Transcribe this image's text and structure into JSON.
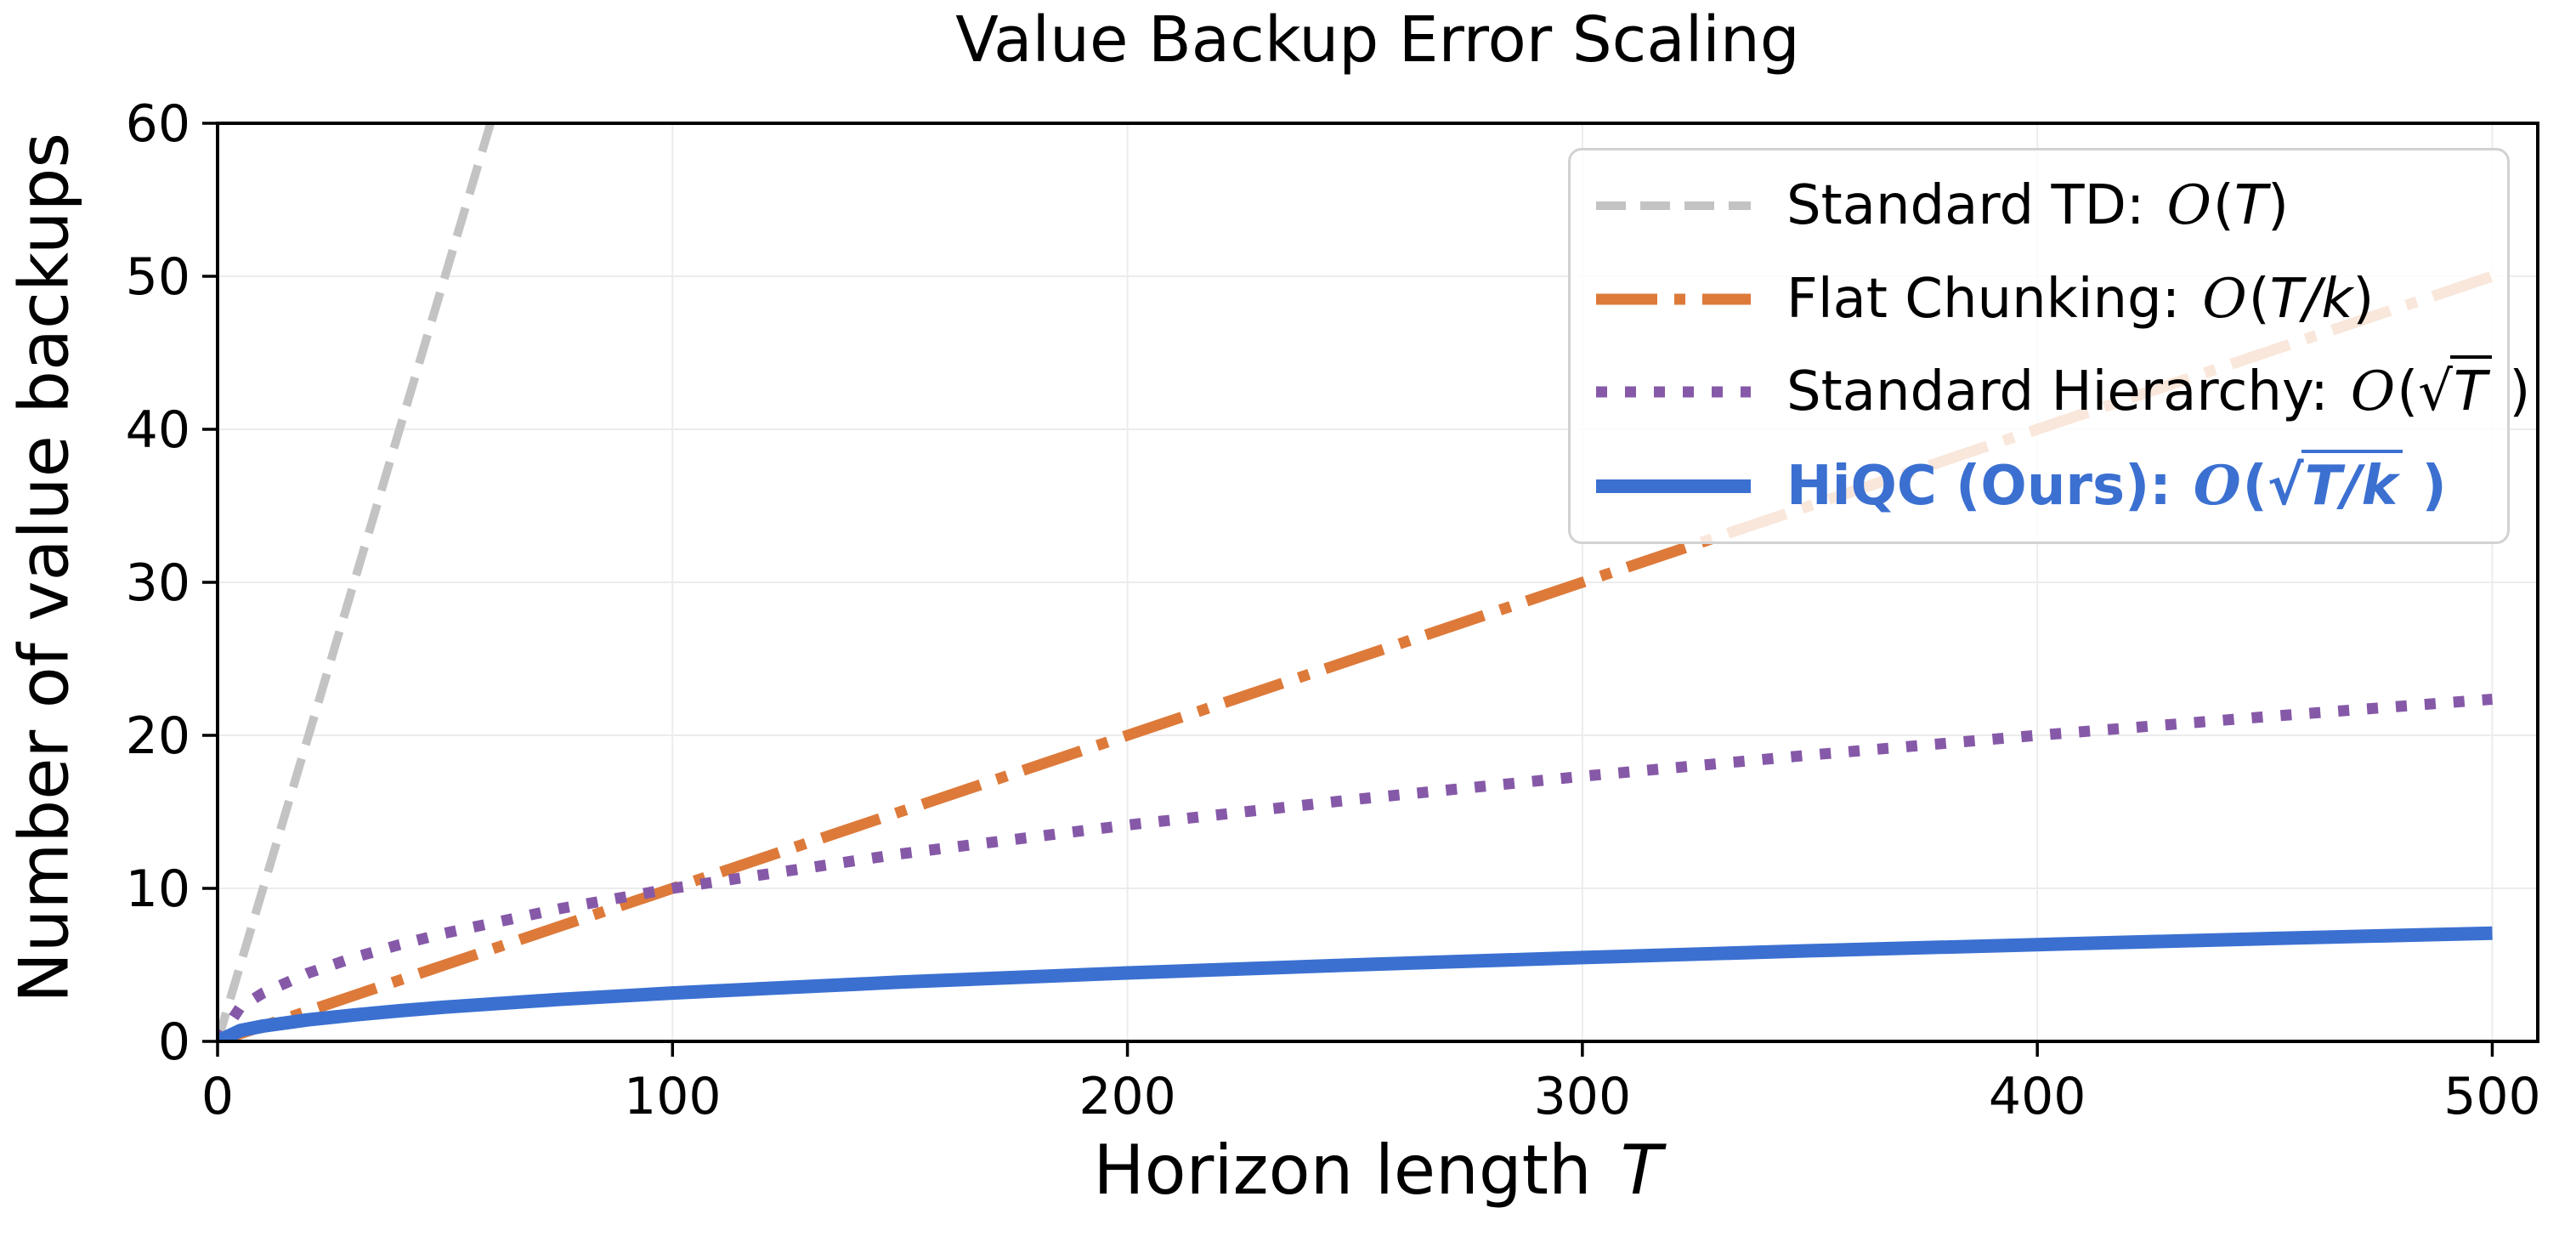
{
  "title": "Value Backup Error Scaling",
  "axes": {
    "xlabel": "Horizon length",
    "xlabel_var": "T",
    "ylabel": "Number of value backups",
    "x_tick_labels": [
      "0",
      "100",
      "200",
      "300",
      "400",
      "500"
    ],
    "y_tick_labels": [
      "0",
      "10",
      "20",
      "30",
      "40",
      "50",
      "60"
    ]
  },
  "legend": {
    "items": [
      {
        "label": "Standard TD:",
        "formula": "𝒪(T)",
        "math": {
          "o": "O",
          "open": "(",
          "inner": "T",
          "close": ")"
        }
      },
      {
        "label": "Flat Chunking:",
        "formula": "𝒪(T/k)",
        "math": {
          "o": "O",
          "open": "(",
          "inner": "T/k",
          "close": ")"
        }
      },
      {
        "label": "Standard Hierarchy:",
        "formula": "𝒪(√T)",
        "math": {
          "o": "O",
          "open": "(",
          "radical": "√",
          "inner": "T",
          "close": " )"
        }
      },
      {
        "label": "HiQC (Ours):",
        "formula": "𝒪(√T/k)",
        "bold": true,
        "color": "#3b70d1",
        "math": {
          "o": "O",
          "open": "(",
          "radical": "√",
          "inner": "T/k",
          "close": " )"
        }
      }
    ]
  },
  "chart_data": {
    "type": "line",
    "title": "Value Backup Error Scaling",
    "xlabel": "Horizon length T",
    "ylabel": "Number of value backups",
    "xlim": [
      0,
      510
    ],
    "ylim": [
      0,
      60
    ],
    "grid": true,
    "grid_color": "#ececec",
    "legend_position": "upper right",
    "chunk_size_k": 10,
    "x_ticks": [
      0,
      100,
      200,
      300,
      400,
      500
    ],
    "y_ticks": [
      0,
      10,
      20,
      30,
      40,
      50,
      60
    ],
    "x": [
      0,
      5,
      10,
      20,
      30,
      40,
      50,
      75,
      100,
      150,
      200,
      250,
      300,
      350,
      400,
      450,
      500
    ],
    "series": [
      {
        "name": "Standard TD",
        "formula": "O(T)",
        "style": "dashed",
        "color": "#c3c3c3",
        "linewidth": 10,
        "values": [
          0,
          5,
          10,
          20,
          30,
          40,
          50,
          75,
          100,
          150,
          200,
          250,
          300,
          350,
          400,
          450,
          500
        ]
      },
      {
        "name": "Flat Chunking",
        "formula": "O(T/k)",
        "style": "dashdot",
        "color": "#dd7a3a",
        "linewidth": 13,
        "values": [
          0,
          0.5,
          1,
          2,
          3,
          4,
          5,
          7.5,
          10,
          15,
          20,
          25,
          30,
          35,
          40,
          45,
          50
        ]
      },
      {
        "name": "Standard Hierarchy",
        "formula": "O(√T)",
        "style": "dotted",
        "color": "#8659a8",
        "linewidth": 13,
        "values": [
          0,
          2.24,
          3.16,
          4.47,
          5.48,
          6.32,
          7.07,
          8.66,
          10,
          12.25,
          14.14,
          15.81,
          17.32,
          18.71,
          20,
          21.21,
          22.36
        ]
      },
      {
        "name": "HiQC (Ours)",
        "formula": "O(√T/k)",
        "style": "solid",
        "color": "#3b70d1",
        "linewidth": 16,
        "values": [
          0,
          0.71,
          1,
          1.41,
          1.73,
          2,
          2.24,
          2.74,
          3.16,
          3.87,
          4.47,
          5,
          5.48,
          5.92,
          6.32,
          6.71,
          7.07
        ]
      }
    ]
  }
}
